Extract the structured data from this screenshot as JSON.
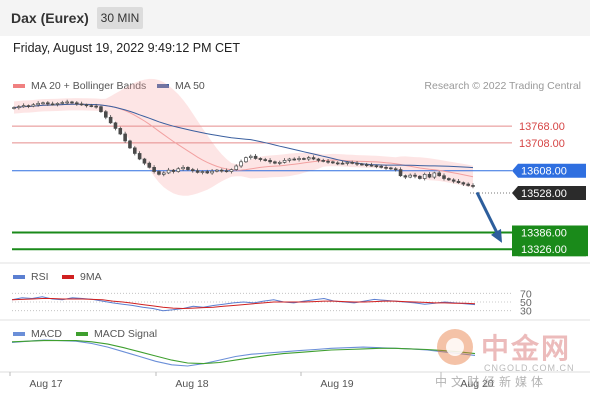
{
  "header": {
    "instrument": "Dax (Eurex)",
    "timeframe": "30 MIN"
  },
  "datetime": "Friday, August 19, 2022 9:49:12 PM CET",
  "legend": {
    "ma20_label": "MA 20 + Bollinger Bands",
    "ma50_label": "MA 50",
    "credit": "Research © 2022 Trading Central",
    "rsi_label": "RSI",
    "rsi_ma_label": "9MA",
    "macd_label": "MACD",
    "macd_signal_label": "MACD Signal"
  },
  "colors": {
    "ma20": "#f08080",
    "ma50": "#3a5f9f",
    "resistance": "#d64545",
    "pivot": "#2f6fe0",
    "support": "#1a8a1a",
    "arrow": "#2d5e9c",
    "rsi": "#5b7fd1",
    "rsi_ma": "#d02020",
    "macd": "#6b8fd8",
    "macd_signal": "#3f9f2f",
    "candle": "#4a4a4a"
  },
  "chart_data": [
    {
      "type": "candlestick",
      "x_ticks": [
        "Aug 17",
        "Aug 18",
        "Aug 19",
        "Aug 20"
      ],
      "ylim": [
        13280,
        13880
      ],
      "close_series": [
        13835,
        13838,
        13842,
        13840,
        13845,
        13850,
        13852,
        13848,
        13846,
        13850,
        13853,
        13855,
        13852,
        13848,
        13845,
        13842,
        13840,
        13838,
        13820,
        13800,
        13780,
        13760,
        13740,
        13715,
        13690,
        13670,
        13650,
        13635,
        13620,
        13605,
        13595,
        13600,
        13610,
        13605,
        13615,
        13620,
        13612,
        13608,
        13602,
        13605,
        13600,
        13606,
        13610,
        13608,
        13605,
        13612,
        13625,
        13640,
        13655,
        13660,
        13652,
        13648,
        13645,
        13640,
        13635,
        13638,
        13645,
        13650,
        13648,
        13652,
        13650,
        13655,
        13650,
        13645,
        13642,
        13640,
        13636,
        13635,
        13634,
        13638,
        13635,
        13632,
        13630,
        13628,
        13626,
        13624,
        13620,
        13618,
        13615,
        13612,
        13590,
        13585,
        13592,
        13588,
        13580,
        13595,
        13585,
        13600,
        13590,
        13580,
        13575,
        13570,
        13565,
        13560,
        13555,
        13552
      ],
      "levels": [
        {
          "label": "13768.00",
          "value": 13768,
          "kind": "resistance"
        },
        {
          "label": "13708.00",
          "value": 13708,
          "kind": "resistance"
        },
        {
          "label": "13608.00",
          "value": 13608,
          "kind": "pivot"
        },
        {
          "label": "13528.00",
          "value": 13528,
          "kind": "last"
        },
        {
          "label": "13386.00",
          "value": 13386,
          "kind": "support"
        },
        {
          "label": "13326.00",
          "value": 13326,
          "kind": "support"
        }
      ]
    },
    {
      "type": "line",
      "name": "RSI",
      "y_ticks": [
        "70",
        "50",
        "30"
      ],
      "ylim": [
        20,
        80
      ],
      "series": [
        {
          "name": "RSI",
          "values": [
            55,
            60,
            58,
            62,
            57,
            55,
            60,
            58,
            56,
            52,
            48,
            45,
            42,
            38,
            35,
            30,
            32,
            35,
            40,
            38,
            42,
            45,
            48,
            50,
            48,
            52,
            55,
            50,
            48,
            52,
            55,
            58,
            52,
            50,
            48,
            52,
            56,
            54,
            52,
            50,
            48,
            45,
            47,
            50,
            48,
            46,
            44
          ]
        },
        {
          "name": "9MA",
          "values": [
            55,
            56,
            57,
            58,
            58,
            57,
            57,
            57,
            56,
            55,
            52,
            50,
            47,
            44,
            41,
            38,
            36,
            35,
            36,
            37,
            38,
            40,
            42,
            44,
            46,
            48,
            50,
            50,
            50,
            50,
            51,
            52,
            52,
            51,
            50,
            50,
            51,
            52,
            52,
            51,
            50,
            49,
            48,
            48,
            47,
            47,
            46
          ]
        }
      ]
    },
    {
      "type": "line",
      "name": "MACD",
      "series": [
        {
          "name": "MACD",
          "values": [
            10,
            12,
            14,
            13,
            12,
            8,
            2,
            -6,
            -14,
            -22,
            -28,
            -30,
            -26,
            -20,
            -14,
            -10,
            -8,
            -6,
            -4,
            -2,
            0,
            1,
            2,
            1,
            0,
            -1,
            -3,
            -6,
            -9,
            -12
          ]
        },
        {
          "name": "MACD Signal",
          "values": [
            11,
            12,
            13,
            13,
            13,
            11,
            7,
            1,
            -6,
            -13,
            -20,
            -25,
            -26,
            -24,
            -20,
            -16,
            -12,
            -9,
            -7,
            -5,
            -3,
            -2,
            -1,
            0,
            0,
            -1,
            -2,
            -4,
            -6,
            -9
          ]
        }
      ]
    }
  ]
}
